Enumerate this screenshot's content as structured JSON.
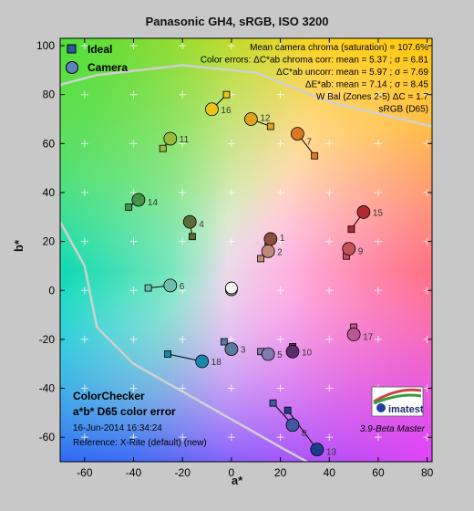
{
  "colors": {
    "ideal_edge": "#000000",
    "camera_edge": "#000000",
    "link": "#000000",
    "grid_plus": "#ffffff",
    "gamut_line": "#d0d0d0",
    "background": "#c8c8c8"
  },
  "chart_data": {
    "type": "scatter",
    "title": "Panasonic GH4, sRGB, ISO 3200",
    "xlabel": "a*",
    "ylabel": "b*",
    "xlim": [
      -70,
      82
    ],
    "ylim": [
      -70,
      103
    ],
    "xticks": [
      -60,
      -40,
      -20,
      0,
      20,
      40,
      60,
      80
    ],
    "yticks": [
      -60,
      -40,
      -20,
      0,
      20,
      40,
      60,
      80,
      100
    ],
    "legend": {
      "position": "top-left",
      "entries": [
        "Ideal",
        "Camera"
      ]
    },
    "stats": [
      "Mean camera chroma (saturation) = 107.6%",
      "Color errors: ΔC*ab chroma corr:  mean = 5.37 ;  σ = 6.81",
      "ΔC*ab uncorr:  mean = 5.97 ;  σ = 7.69",
      "ΔE*ab:  mean = 7.14 ;  σ = 8.45",
      "W Bal (Zones 2-5) ΔC = 1.7",
      "sRGB (D65)"
    ],
    "bottom_left": [
      "ColorChecker",
      "a*b* D65 color error",
      "16-Jun-2014 16:34:24",
      "Reference: X-Rite (default) (new)"
    ],
    "logo_text": "imatest",
    "version": "3.9-Beta  Master",
    "series": [
      {
        "name": "Ideal",
        "marker": "square",
        "points": [
          {
            "id": "1",
            "a": 15,
            "b": 18
          },
          {
            "id": "2",
            "a": 12,
            "b": 13
          },
          {
            "id": "3",
            "a": -3,
            "b": -21
          },
          {
            "id": "4",
            "a": -16,
            "b": 22
          },
          {
            "id": "5",
            "a": 12,
            "b": -25
          },
          {
            "id": "6",
            "a": -34,
            "b": 1
          },
          {
            "id": "7",
            "a": 34,
            "b": 55
          },
          {
            "id": "8",
            "a": 17,
            "b": -46
          },
          {
            "id": "9",
            "a": 47,
            "b": 14
          },
          {
            "id": "10",
            "a": 25,
            "b": -23
          },
          {
            "id": "11",
            "a": -28,
            "b": 58
          },
          {
            "id": "12",
            "a": 16,
            "b": 67
          },
          {
            "id": "13",
            "a": 23,
            "b": -49
          },
          {
            "id": "14",
            "a": -42,
            "b": 34
          },
          {
            "id": "15",
            "a": 49,
            "b": 25
          },
          {
            "id": "16",
            "a": -2,
            "b": 80
          },
          {
            "id": "17",
            "a": 50,
            "b": -15
          },
          {
            "id": "18",
            "a": -26,
            "b": -26
          }
        ]
      },
      {
        "name": "Camera",
        "marker": "circle",
        "points": [
          {
            "id": "1",
            "a": 16,
            "b": 21
          },
          {
            "id": "2",
            "a": 15,
            "b": 16
          },
          {
            "id": "3",
            "a": 0,
            "b": -24
          },
          {
            "id": "4",
            "a": -17,
            "b": 28
          },
          {
            "id": "5",
            "a": 15,
            "b": -26
          },
          {
            "id": "6",
            "a": -25,
            "b": 2
          },
          {
            "id": "7",
            "a": 27,
            "b": 64
          },
          {
            "id": "8",
            "a": 25,
            "b": -55
          },
          {
            "id": "9",
            "a": 48,
            "b": 17
          },
          {
            "id": "10",
            "a": 25,
            "b": -25
          },
          {
            "id": "11",
            "a": -25,
            "b": 62
          },
          {
            "id": "12",
            "a": 8,
            "b": 70
          },
          {
            "id": "13",
            "a": 35,
            "b": -65
          },
          {
            "id": "14",
            "a": -38,
            "b": 37
          },
          {
            "id": "15",
            "a": 54,
            "b": 32
          },
          {
            "id": "16",
            "a": -8,
            "b": 74
          },
          {
            "id": "17",
            "a": 50,
            "b": -18
          },
          {
            "id": "18",
            "a": -12,
            "b": -29
          }
        ]
      },
      {
        "name": "White",
        "marker": "circle",
        "points": [
          {
            "id": "",
            "a": 0,
            "b": 1
          }
        ]
      }
    ],
    "patch_colors": {
      "1": "#8a4e3c",
      "2": "#c0897a",
      "3": "#5b7aa0",
      "4": "#5a6c38",
      "5": "#7f7cb0",
      "6": "#6fbfae",
      "7": "#d97a23",
      "8": "#3e58a4",
      "9": "#c6505c",
      "10": "#5a2e68",
      "11": "#9cbb3c",
      "12": "#e0a223",
      "13": "#203c8e",
      "14": "#46924a",
      "15": "#b12a30",
      "16": "#ecc419",
      "17": "#bc5894",
      "18": "#1886a8",
      "White": "#f4f4f4"
    }
  }
}
